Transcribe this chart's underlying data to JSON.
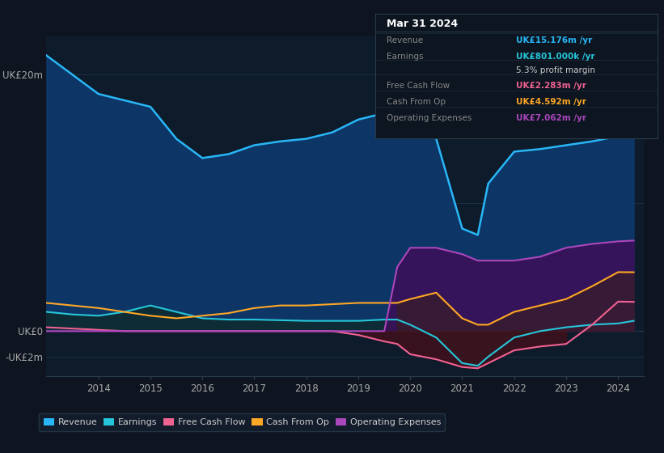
{
  "background_color": "#0e1520",
  "plot_bg_color": "#0d1b2a",
  "years": [
    2013.0,
    2013.5,
    2014,
    2014.5,
    2015,
    2015.5,
    2016,
    2016.5,
    2017,
    2017.5,
    2018,
    2018.5,
    2019,
    2019.5,
    2019.75,
    2020,
    2020.5,
    2021,
    2021.3,
    2021.5,
    2022,
    2022.5,
    2023,
    2023.5,
    2024,
    2024.3
  ],
  "revenue": [
    21.5,
    20.0,
    18.5,
    18.0,
    17.5,
    15.0,
    13.5,
    13.8,
    14.5,
    14.8,
    15.0,
    15.5,
    16.5,
    17.0,
    17.0,
    16.0,
    15.0,
    8.0,
    7.5,
    11.5,
    14.0,
    14.2,
    14.5,
    14.8,
    15.2,
    15.176
  ],
  "earnings": [
    1.5,
    1.3,
    1.2,
    1.5,
    2.0,
    1.5,
    1.0,
    0.9,
    0.9,
    0.85,
    0.8,
    0.8,
    0.8,
    0.9,
    0.9,
    0.5,
    -0.5,
    -2.5,
    -2.7,
    -2.0,
    -0.5,
    0.0,
    0.3,
    0.5,
    0.6,
    0.801
  ],
  "free_cash_flow": [
    0.3,
    0.2,
    0.1,
    0.0,
    0.0,
    0.0,
    0.0,
    0.0,
    0.0,
    0.0,
    0.0,
    0.0,
    -0.3,
    -0.8,
    -1.0,
    -1.8,
    -2.2,
    -2.8,
    -2.9,
    -2.5,
    -1.5,
    -1.2,
    -1.0,
    0.5,
    2.3,
    2.283
  ],
  "cash_from_op": [
    2.2,
    2.0,
    1.8,
    1.5,
    1.2,
    1.0,
    1.2,
    1.4,
    1.8,
    2.0,
    2.0,
    2.1,
    2.2,
    2.2,
    2.2,
    2.5,
    3.0,
    1.0,
    0.5,
    0.5,
    1.5,
    2.0,
    2.5,
    3.5,
    4.6,
    4.592
  ],
  "operating_expenses": [
    0.0,
    0.0,
    0.0,
    0.0,
    0.0,
    0.0,
    0.0,
    0.0,
    0.0,
    0.0,
    0.0,
    0.0,
    0.0,
    0.0,
    5.0,
    6.5,
    6.5,
    6.0,
    5.5,
    5.5,
    5.5,
    5.8,
    6.5,
    6.8,
    7.0,
    7.062
  ],
  "revenue_color": "#29b6f6",
  "earnings_color": "#26c6da",
  "free_cash_flow_color": "#f06292",
  "cash_from_op_color": "#ffa726",
  "operating_expenses_color": "#ab47bc",
  "revenue_fill": "#0d3a6e",
  "earnings_fill": "#0d2a2a",
  "operating_expenses_fill": "#3d0f5a",
  "fcf_neg_fill": "#4a0d1a",
  "ylim_min": -3.5,
  "ylim_max": 23.0,
  "xlim_min": 2013.0,
  "xlim_max": 2024.5,
  "ytick_vals": [
    20,
    0,
    -2
  ],
  "ytick_labels": [
    "UK£20m",
    "UK£0",
    "-UK£2m"
  ],
  "xtick_vals": [
    2014,
    2015,
    2016,
    2017,
    2018,
    2019,
    2020,
    2021,
    2022,
    2023,
    2024
  ],
  "grid_lines": [
    20,
    10,
    0
  ],
  "info_box": {
    "title": "Mar 31 2024",
    "rows": [
      {
        "label": "Revenue",
        "value": "UK£15.176m /yr",
        "value_color": "#29b6f6",
        "label_color": "#888888"
      },
      {
        "label": "Earnings",
        "value": "UK£801.000k /yr",
        "value_color": "#26c6da",
        "label_color": "#888888"
      },
      {
        "label": "",
        "value": "5.3% profit margin",
        "value_color": "#cccccc",
        "label_color": "#888888"
      },
      {
        "label": "Free Cash Flow",
        "value": "UK£2.283m /yr",
        "value_color": "#f06292",
        "label_color": "#888888"
      },
      {
        "label": "Cash From Op",
        "value": "UK£4.592m /yr",
        "value_color": "#ffa726",
        "label_color": "#888888"
      },
      {
        "label": "Operating Expenses",
        "value": "UK£7.062m /yr",
        "value_color": "#ab47bc",
        "label_color": "#888888"
      }
    ]
  },
  "legend_items": [
    {
      "label": "Revenue",
      "color": "#29b6f6"
    },
    {
      "label": "Earnings",
      "color": "#26c6da"
    },
    {
      "label": "Free Cash Flow",
      "color": "#f06292"
    },
    {
      "label": "Cash From Op",
      "color": "#ffa726"
    },
    {
      "label": "Operating Expenses",
      "color": "#ab47bc"
    }
  ]
}
